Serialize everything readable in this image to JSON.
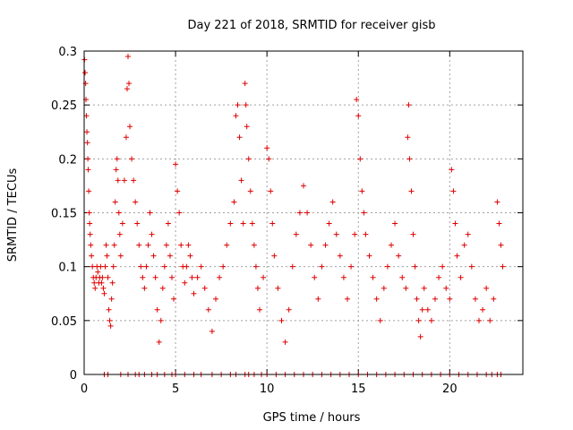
{
  "chart_data": {
    "type": "scatter",
    "title": "Day 221 of 2018, SRMTID for receiver gisb",
    "xlabel": "GPS time / hours",
    "ylabel": "SRMTID / TECUs",
    "xlim": [
      0,
      24
    ],
    "ylim": [
      0,
      0.3
    ],
    "x_ticks": [
      0,
      5,
      10,
      15,
      20
    ],
    "x_tick_labels": [
      "0",
      "5",
      "10",
      "15",
      "20"
    ],
    "y_ticks": [
      0,
      0.05,
      0.1,
      0.15,
      0.2,
      0.25,
      0.3
    ],
    "y_tick_labels": [
      "0",
      "0.05",
      "0.1",
      "0.15",
      "0.2",
      "0.25",
      "0.3"
    ],
    "grid": true,
    "marker": "+",
    "series": [
      {
        "name": "SRMTID",
        "color": "#e00000",
        "points": [
          [
            0.02,
            0.292
          ],
          [
            0.05,
            0.28
          ],
          [
            0.08,
            0.27
          ],
          [
            0.1,
            0.255
          ],
          [
            0.12,
            0.24
          ],
          [
            0.15,
            0.225
          ],
          [
            0.18,
            0.215
          ],
          [
            0.2,
            0.2
          ],
          [
            0.22,
            0.19
          ],
          [
            0.25,
            0.17
          ],
          [
            0.28,
            0.15
          ],
          [
            0.3,
            0.14
          ],
          [
            0.33,
            0.13
          ],
          [
            0.36,
            0.12
          ],
          [
            0.4,
            0.11
          ],
          [
            0.45,
            0.1
          ],
          [
            0.5,
            0.09
          ],
          [
            0.55,
            0.085
          ],
          [
            0.6,
            0.08
          ],
          [
            0.65,
            0.09
          ],
          [
            0.7,
            0.1
          ],
          [
            0.75,
            0.095
          ],
          [
            0.8,
            0.085
          ],
          [
            0.85,
            0.09
          ],
          [
            0.9,
            0.1
          ],
          [
            0.95,
            0.085
          ],
          [
            1.0,
            0.09
          ],
          [
            1.05,
            0.08
          ],
          [
            1.1,
            0.075
          ],
          [
            1.15,
            0.1
          ],
          [
            1.2,
            0.12
          ],
          [
            1.25,
            0.11
          ],
          [
            1.3,
            0.09
          ],
          [
            1.35,
            0.06
          ],
          [
            1.4,
            0.05
          ],
          [
            1.45,
            0.045
          ],
          [
            1.5,
            0.07
          ],
          [
            1.55,
            0.085
          ],
          [
            1.6,
            0.1
          ],
          [
            1.65,
            0.12
          ],
          [
            1.7,
            0.16
          ],
          [
            1.75,
            0.19
          ],
          [
            1.8,
            0.2
          ],
          [
            1.85,
            0.18
          ],
          [
            1.9,
            0.15
          ],
          [
            1.95,
            0.13
          ],
          [
            2.0,
            0.11
          ],
          [
            2.1,
            0.14
          ],
          [
            2.2,
            0.18
          ],
          [
            2.3,
            0.22
          ],
          [
            2.35,
            0.265
          ],
          [
            2.4,
            0.295
          ],
          [
            2.45,
            0.27
          ],
          [
            2.5,
            0.23
          ],
          [
            2.6,
            0.2
          ],
          [
            2.7,
            0.18
          ],
          [
            2.8,
            0.16
          ],
          [
            2.9,
            0.14
          ],
          [
            3.0,
            0.12
          ],
          [
            3.1,
            0.1
          ],
          [
            3.2,
            0.09
          ],
          [
            3.3,
            0.08
          ],
          [
            3.4,
            0.1
          ],
          [
            3.5,
            0.12
          ],
          [
            3.6,
            0.15
          ],
          [
            3.7,
            0.13
          ],
          [
            3.8,
            0.11
          ],
          [
            3.9,
            0.09
          ],
          [
            4.0,
            0.06
          ],
          [
            4.1,
            0.03
          ],
          [
            4.2,
            0.05
          ],
          [
            4.3,
            0.08
          ],
          [
            4.4,
            0.1
          ],
          [
            4.5,
            0.12
          ],
          [
            4.6,
            0.14
          ],
          [
            4.7,
            0.11
          ],
          [
            4.8,
            0.09
          ],
          [
            4.9,
            0.07
          ],
          [
            5.0,
            0.195
          ],
          [
            5.1,
            0.17
          ],
          [
            5.2,
            0.15
          ],
          [
            5.3,
            0.12
          ],
          [
            5.4,
            0.1
          ],
          [
            5.5,
            0.085
          ],
          [
            5.6,
            0.1
          ],
          [
            5.7,
            0.12
          ],
          [
            5.8,
            0.11
          ],
          [
            5.9,
            0.09
          ],
          [
            6.0,
            0.075
          ],
          [
            6.2,
            0.09
          ],
          [
            6.4,
            0.1
          ],
          [
            6.6,
            0.08
          ],
          [
            6.8,
            0.06
          ],
          [
            7.0,
            0.04
          ],
          [
            7.2,
            0.07
          ],
          [
            7.4,
            0.09
          ],
          [
            7.6,
            0.1
          ],
          [
            7.8,
            0.12
          ],
          [
            8.0,
            0.14
          ],
          [
            8.2,
            0.16
          ],
          [
            8.3,
            0.24
          ],
          [
            8.4,
            0.25
          ],
          [
            8.5,
            0.22
          ],
          [
            8.6,
            0.18
          ],
          [
            8.7,
            0.14
          ],
          [
            8.8,
            0.27
          ],
          [
            8.85,
            0.25
          ],
          [
            8.9,
            0.23
          ],
          [
            9.0,
            0.2
          ],
          [
            9.1,
            0.17
          ],
          [
            9.2,
            0.14
          ],
          [
            9.3,
            0.12
          ],
          [
            9.4,
            0.1
          ],
          [
            9.5,
            0.08
          ],
          [
            9.6,
            0.06
          ],
          [
            9.8,
            0.09
          ],
          [
            10.0,
            0.21
          ],
          [
            10.1,
            0.2
          ],
          [
            10.2,
            0.17
          ],
          [
            10.3,
            0.14
          ],
          [
            10.4,
            0.11
          ],
          [
            10.6,
            0.08
          ],
          [
            10.8,
            0.05
          ],
          [
            11.0,
            0.03
          ],
          [
            11.2,
            0.06
          ],
          [
            11.4,
            0.1
          ],
          [
            11.6,
            0.13
          ],
          [
            11.8,
            0.15
          ],
          [
            12.0,
            0.175
          ],
          [
            12.2,
            0.15
          ],
          [
            12.4,
            0.12
          ],
          [
            12.6,
            0.09
          ],
          [
            12.8,
            0.07
          ],
          [
            13.0,
            0.1
          ],
          [
            13.2,
            0.12
          ],
          [
            13.4,
            0.14
          ],
          [
            13.6,
            0.16
          ],
          [
            13.8,
            0.13
          ],
          [
            14.0,
            0.11
          ],
          [
            14.2,
            0.09
          ],
          [
            14.4,
            0.07
          ],
          [
            14.6,
            0.1
          ],
          [
            14.8,
            0.13
          ],
          [
            14.9,
            0.255
          ],
          [
            15.0,
            0.24
          ],
          [
            15.1,
            0.2
          ],
          [
            15.2,
            0.17
          ],
          [
            15.3,
            0.15
          ],
          [
            15.4,
            0.13
          ],
          [
            15.6,
            0.11
          ],
          [
            15.8,
            0.09
          ],
          [
            16.0,
            0.07
          ],
          [
            16.2,
            0.05
          ],
          [
            16.4,
            0.08
          ],
          [
            16.6,
            0.1
          ],
          [
            16.8,
            0.12
          ],
          [
            17.0,
            0.14
          ],
          [
            17.2,
            0.11
          ],
          [
            17.4,
            0.09
          ],
          [
            17.6,
            0.08
          ],
          [
            17.7,
            0.22
          ],
          [
            17.75,
            0.25
          ],
          [
            17.8,
            0.2
          ],
          [
            17.9,
            0.17
          ],
          [
            18.0,
            0.13
          ],
          [
            18.1,
            0.1
          ],
          [
            18.2,
            0.07
          ],
          [
            18.3,
            0.05
          ],
          [
            18.4,
            0.035
          ],
          [
            18.5,
            0.06
          ],
          [
            18.6,
            0.08
          ],
          [
            18.8,
            0.06
          ],
          [
            19.0,
            0.05
          ],
          [
            19.2,
            0.07
          ],
          [
            19.4,
            0.09
          ],
          [
            19.6,
            0.1
          ],
          [
            19.8,
            0.08
          ],
          [
            20.0,
            0.07
          ],
          [
            20.1,
            0.19
          ],
          [
            20.2,
            0.17
          ],
          [
            20.3,
            0.14
          ],
          [
            20.4,
            0.11
          ],
          [
            20.6,
            0.09
          ],
          [
            20.8,
            0.12
          ],
          [
            21.0,
            0.13
          ],
          [
            21.2,
            0.1
          ],
          [
            21.4,
            0.07
          ],
          [
            21.6,
            0.05
          ],
          [
            21.8,
            0.06
          ],
          [
            22.0,
            0.08
          ],
          [
            22.2,
            0.05
          ],
          [
            22.4,
            0.07
          ],
          [
            22.6,
            0.16
          ],
          [
            22.7,
            0.14
          ],
          [
            22.8,
            0.12
          ],
          [
            22.9,
            0.1
          ]
        ]
      },
      {
        "name": "zero-baseline",
        "color": "#e00000",
        "points": [
          [
            1.1,
            0
          ],
          [
            1.3,
            0
          ],
          [
            2.0,
            0
          ],
          [
            2.4,
            0
          ],
          [
            2.8,
            0
          ],
          [
            3.0,
            0
          ],
          [
            3.3,
            0
          ],
          [
            3.7,
            0
          ],
          [
            4.0,
            0
          ],
          [
            4.4,
            0
          ],
          [
            4.8,
            0
          ],
          [
            5.0,
            0
          ],
          [
            5.5,
            0
          ],
          [
            6.0,
            0
          ],
          [
            6.4,
            0
          ],
          [
            7.0,
            0
          ],
          [
            7.5,
            0
          ],
          [
            8.0,
            0
          ],
          [
            8.3,
            0
          ],
          [
            8.8,
            0
          ],
          [
            9.0,
            0
          ],
          [
            9.3,
            0
          ],
          [
            9.7,
            0
          ],
          [
            10.0,
            0
          ],
          [
            10.5,
            0
          ],
          [
            11.0,
            0
          ],
          [
            11.5,
            0
          ],
          [
            12.0,
            0
          ],
          [
            12.5,
            0
          ],
          [
            13.0,
            0
          ],
          [
            13.5,
            0
          ],
          [
            14.0,
            0
          ],
          [
            14.5,
            0
          ],
          [
            15.0,
            0
          ],
          [
            15.5,
            0
          ],
          [
            16.0,
            0
          ],
          [
            16.5,
            0
          ],
          [
            17.0,
            0
          ],
          [
            17.5,
            0
          ],
          [
            18.0,
            0
          ],
          [
            18.5,
            0
          ],
          [
            19.0,
            0
          ],
          [
            19.5,
            0
          ],
          [
            20.0,
            0
          ],
          [
            20.5,
            0
          ],
          [
            21.0,
            0
          ],
          [
            21.5,
            0
          ],
          [
            22.0,
            0
          ],
          [
            22.3,
            0
          ],
          [
            22.6,
            0
          ],
          [
            22.8,
            0
          ]
        ]
      }
    ]
  }
}
